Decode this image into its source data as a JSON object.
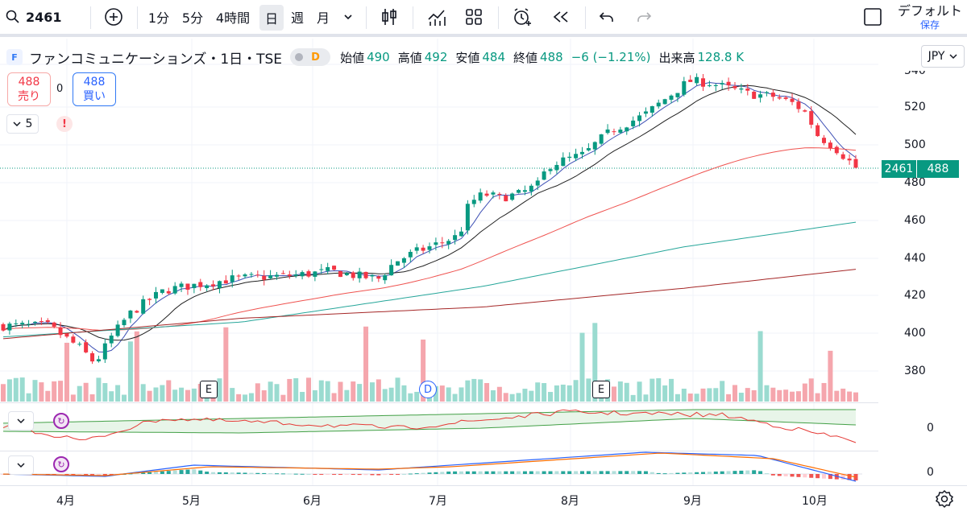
{
  "toolbar": {
    "symbol": "2461",
    "intervals": [
      "1分",
      "5分",
      "4時間",
      "日",
      "週",
      "月"
    ],
    "active_interval": "日",
    "layout_name": "デフォルト",
    "save_label": "保存"
  },
  "legend": {
    "logo": "F",
    "title": "ファンコミュニケーションズ・1日・TSE",
    "dividend_badge": "D",
    "open_label": "始値",
    "open": "490",
    "high_label": "高値",
    "high": "492",
    "low_label": "安値",
    "low": "484",
    "close_label": "終値",
    "close": "488",
    "change": "−6 (−1.21%)",
    "volume_label": "出来高",
    "volume": "128.8 K"
  },
  "trade": {
    "sell_price": "488",
    "sell_label": "売り",
    "spread": "0",
    "buy_price": "488",
    "buy_label": "買い"
  },
  "indicators": {
    "count": "5",
    "alert": "!"
  },
  "currency": "JPY",
  "price_scale": {
    "ticks": [
      "540",
      "520",
      "500",
      "480",
      "460",
      "440",
      "420",
      "400",
      "380"
    ],
    "last_symbol": "2461",
    "last_price": "488"
  },
  "time_axis": [
    "4月",
    "5月",
    "6月",
    "7月",
    "8月",
    "9月",
    "10月"
  ],
  "events": [
    {
      "type": "E",
      "label": "E"
    },
    {
      "type": "D",
      "label": "D"
    },
    {
      "type": "E",
      "label": "E"
    }
  ],
  "oscillator_zero": "0",
  "macd_zero": "0",
  "colors": {
    "up": "#089981",
    "down": "#f23645",
    "sma_blue": "#3f51b5",
    "sma_black": "#212121",
    "sma_red": "#ef5350",
    "sma_teal": "#26a69a",
    "sma_brown": "#a52727"
  },
  "icons": [
    "search-icon",
    "compare-add-icon",
    "chevron-down-icon",
    "candle-style-icon",
    "indicators-icon",
    "layouts-icon",
    "alert-add-icon",
    "replay-icon",
    "undo-icon",
    "redo-icon",
    "layout-checkbox-icon",
    "gear-icon"
  ]
}
